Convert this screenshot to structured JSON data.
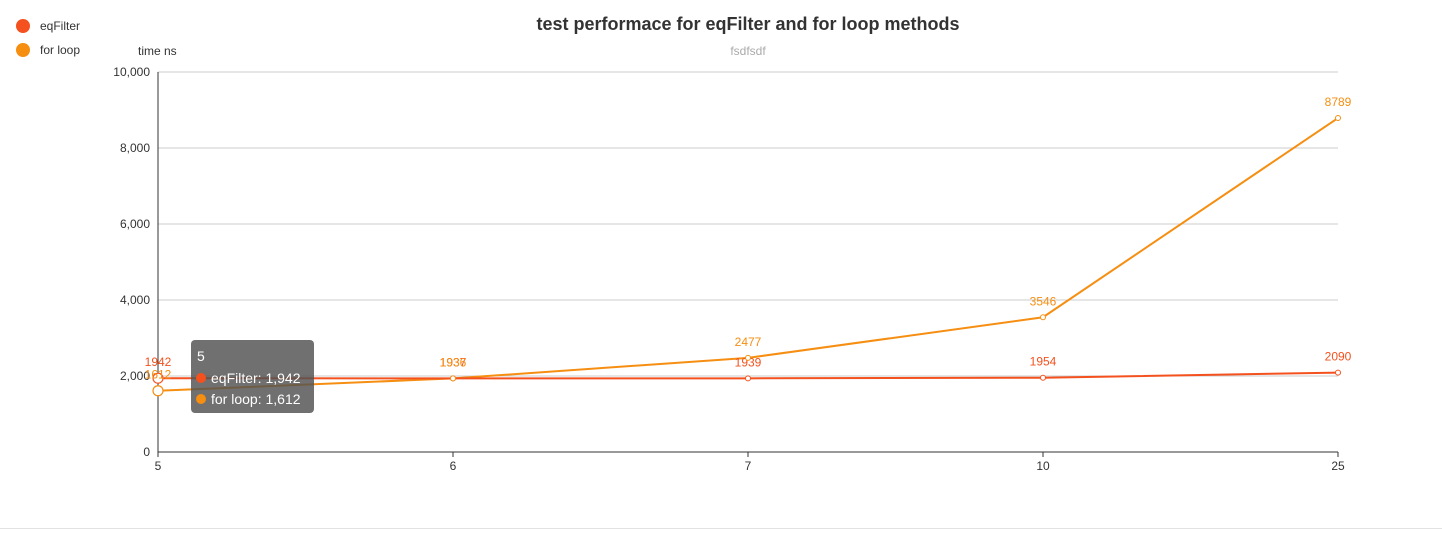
{
  "chart_data": {
    "type": "line",
    "title": "test performace for eqFilter and for loop methods",
    "subtitle": "fsdfsdf",
    "ylabel": "time ns",
    "xlabel": "",
    "categories": [
      "5",
      "6",
      "7",
      "10",
      "25"
    ],
    "ylim": [
      0,
      10000
    ],
    "yticks": [
      "0",
      "2,000",
      "4,000",
      "6,000",
      "8,000",
      "10,000"
    ],
    "grid": true,
    "legend_position": "top-left",
    "series": [
      {
        "name": "eqFilter",
        "color": "#f4511e",
        "values": [
          1942,
          1937,
          1939,
          1954,
          2090
        ]
      },
      {
        "name": "for loop",
        "color": "#f68e12",
        "values": [
          1612,
          1936,
          2477,
          3546,
          8789
        ]
      }
    ],
    "tooltip": {
      "title": "5",
      "rows": [
        "eqFilter: 1,942",
        "for loop: 1,612"
      ]
    }
  }
}
